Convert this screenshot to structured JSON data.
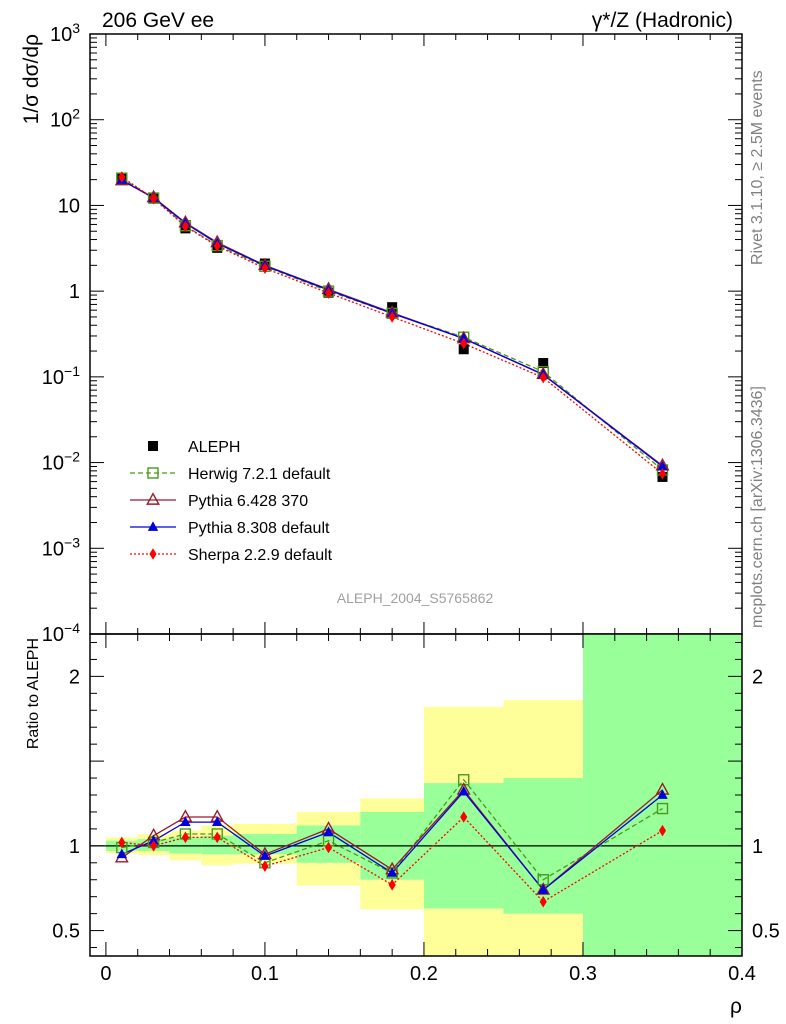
{
  "header": {
    "left": "206 GeV ee",
    "right": "γ*/Z (Hadronic)"
  },
  "side_labels": {
    "rivet": "Rivet 3.1.10, ≥ 2.5M events",
    "mcplots": "mcplots.cern.ch [arXiv:1306.3436]"
  },
  "analysis_id": "ALEPH_2004_S5765862",
  "chart_data": [
    {
      "type": "line",
      "scale": "log-y",
      "ylabel": "1/σ dσ/dρ",
      "ylim": [
        0.0001,
        1000
      ],
      "xlim": [
        -0.01,
        0.4
      ],
      "y_ticks": [
        {
          "v": 0.0001,
          "base": "10",
          "exp": "−4"
        },
        {
          "v": 0.001,
          "base": "10",
          "exp": "−3"
        },
        {
          "v": 0.01,
          "base": "10",
          "exp": "−2"
        },
        {
          "v": 0.1,
          "base": "10",
          "exp": "−1"
        },
        {
          "v": 1,
          "base": "1",
          "exp": ""
        },
        {
          "v": 10,
          "base": "10",
          "exp": ""
        },
        {
          "v": 100,
          "base": "10",
          "exp": "2"
        },
        {
          "v": 1000,
          "base": "10",
          "exp": "3"
        }
      ],
      "x": [
        0.01,
        0.03,
        0.05,
        0.07,
        0.1,
        0.14,
        0.18,
        0.225,
        0.275,
        0.35
      ],
      "series": [
        {
          "name": "ALEPH",
          "style": "data",
          "color": "#000000",
          "values": [
            21,
            12,
            5.4,
            3.2,
            2.1,
            0.96,
            0.65,
            0.21,
            0.145,
            0.0068
          ]
        },
        {
          "name": "Herwig 7.2.1 default",
          "style": "dashed-open-square",
          "color": "#4a9a1a",
          "values": [
            20.8,
            12.2,
            5.8,
            3.4,
            1.95,
            1.0,
            0.55,
            0.29,
            0.115,
            0.0082
          ]
        },
        {
          "name": "Pythia 6.428 370",
          "style": "solid-open-triangle",
          "color": "#9a1b2b",
          "values": [
            19.5,
            12.4,
            6.3,
            3.7,
            2.0,
            1.05,
            0.56,
            0.28,
            0.107,
            0.0092
          ]
        },
        {
          "name": "Pythia 8.308 default",
          "style": "solid-filled-triangle",
          "color": "#0000dd",
          "values": [
            19.8,
            12.2,
            6.2,
            3.6,
            1.98,
            1.03,
            0.55,
            0.28,
            0.106,
            0.009
          ]
        },
        {
          "name": "Sherpa 2.2.9 default",
          "style": "dotted-filled-diamond",
          "color": "#ff0000",
          "values": [
            21.5,
            12.0,
            5.7,
            3.35,
            1.85,
            0.95,
            0.5,
            0.245,
            0.098,
            0.0074
          ]
        }
      ]
    },
    {
      "type": "line",
      "ylabel": "Ratio to ALEPH",
      "xlabel": "ρ",
      "ylim": [
        0.35,
        2.25
      ],
      "xlim": [
        -0.01,
        0.4
      ],
      "y_ticks": [
        0.5,
        1,
        2
      ],
      "y_tick_labels": [
        "0.5",
        "1",
        "2"
      ],
      "x_ticks": [
        0,
        0.1,
        0.2,
        0.3,
        0.4
      ],
      "x_tick_labels": [
        "0",
        "0.1",
        "0.2",
        "0.3",
        "0.4"
      ],
      "reference_line": 1,
      "bands": [
        {
          "x0": 0.0,
          "x1": 0.02,
          "g": [
            0.97,
            1.03
          ],
          "y": [
            0.955,
            1.05
          ]
        },
        {
          "x0": 0.02,
          "x1": 0.04,
          "g": [
            0.97,
            1.04
          ],
          "y": [
            0.945,
            1.07
          ]
        },
        {
          "x0": 0.04,
          "x1": 0.06,
          "g": [
            0.955,
            1.05
          ],
          "y": [
            0.915,
            1.09
          ]
        },
        {
          "x0": 0.06,
          "x1": 0.08,
          "g": [
            0.95,
            1.06
          ],
          "y": [
            0.885,
            1.12
          ]
        },
        {
          "x0": 0.08,
          "x1": 0.12,
          "g": [
            0.95,
            1.07
          ],
          "y": [
            0.895,
            1.13
          ]
        },
        {
          "x0": 0.12,
          "x1": 0.16,
          "g": [
            0.9,
            1.12
          ],
          "y": [
            0.765,
            1.2
          ]
        },
        {
          "x0": 0.16,
          "x1": 0.2,
          "g": [
            0.8,
            1.2
          ],
          "y": [
            0.625,
            1.28
          ]
        },
        {
          "x0": 0.2,
          "x1": 0.25,
          "g": [
            0.63,
            1.37
          ],
          "y": [
            0.35,
            1.82
          ]
        },
        {
          "x0": 0.25,
          "x1": 0.3,
          "g": [
            0.6,
            1.4
          ],
          "y": [
            0.35,
            1.86
          ]
        },
        {
          "x0": 0.3,
          "x1": 0.4,
          "g": [
            0.35,
            2.25
          ],
          "y": [
            0.35,
            2.25
          ]
        }
      ],
      "x": [
        0.01,
        0.03,
        0.05,
        0.07,
        0.1,
        0.14,
        0.18,
        0.225,
        0.275,
        0.35
      ],
      "series": [
        {
          "name": "Herwig 7.2.1 default",
          "style": "dashed-open-square",
          "color": "#4a9a1a",
          "values": [
            0.99,
            1.02,
            1.07,
            1.07,
            0.9,
            1.03,
            0.84,
            1.39,
            0.8,
            1.22
          ]
        },
        {
          "name": "Pythia 6.428 370",
          "style": "solid-open-triangle",
          "color": "#9a1b2b",
          "values": [
            0.93,
            1.06,
            1.17,
            1.17,
            0.95,
            1.1,
            0.86,
            1.33,
            0.74,
            1.33
          ]
        },
        {
          "name": "Pythia 8.308 default",
          "style": "solid-filled-triangle",
          "color": "#0000dd",
          "values": [
            0.95,
            1.03,
            1.14,
            1.14,
            0.94,
            1.08,
            0.84,
            1.32,
            0.74,
            1.3
          ]
        },
        {
          "name": "Sherpa 2.2.9 default",
          "style": "dotted-filled-diamond",
          "color": "#ff0000",
          "values": [
            1.02,
            1.0,
            1.05,
            1.05,
            0.88,
            0.99,
            0.77,
            1.17,
            0.67,
            1.09
          ]
        }
      ]
    }
  ]
}
